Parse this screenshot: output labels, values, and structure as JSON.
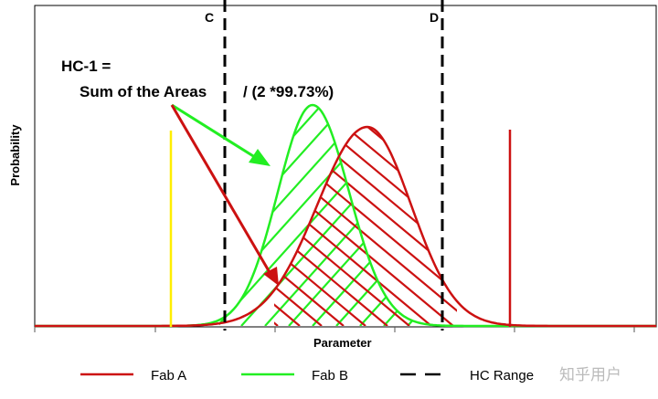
{
  "annotation": {
    "title": "HC-1 =",
    "formula_left": "Sum of the Areas",
    "formula_right": "/ (2 *99.73%)"
  },
  "axes": {
    "xlabel": "Parameter",
    "ylabel": "Probability"
  },
  "limits": {
    "c_label": "C",
    "d_label": "D"
  },
  "legend": {
    "fab_a": "Fab A",
    "fab_b": "Fab B",
    "hc_range": "HC Range"
  },
  "watermark": "知乎用户",
  "colors": {
    "fab_a": "#cc1111",
    "fab_b": "#22ee22",
    "yellow_marker": "#ffee00",
    "hc_range": "#000000"
  }
}
